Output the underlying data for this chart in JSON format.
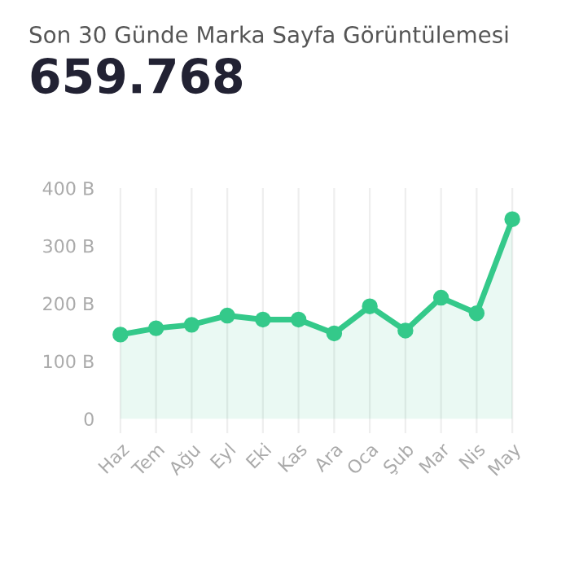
{
  "chart_data": {
    "type": "area",
    "title": "Son 30 Günde Marka Sayfa Görüntülemesi",
    "subtitle": "659.768",
    "categories": [
      "Haz",
      "Tem",
      "Ağu",
      "Eyl",
      "Eki",
      "Kas",
      "Ara",
      "Oca",
      "Şub",
      "Mar",
      "Nis",
      "May"
    ],
    "series": [
      {
        "color": "#34c98a",
        "values": [
          146,
          157,
          163,
          179,
          172,
          172,
          148,
          195,
          153,
          210,
          183,
          346
        ]
      }
    ],
    "ylim": [
      -25,
      400
    ],
    "yticks": [
      {
        "value": 0,
        "label": "0"
      },
      {
        "value": 100,
        "label": "100 B"
      },
      {
        "value": 200,
        "label": "200 B"
      },
      {
        "value": 300,
        "label": "300 B"
      },
      {
        "value": 400,
        "label": "400 B"
      }
    ],
    "grid": "x",
    "marker": "circle",
    "line_style": "solid",
    "legend": false
  }
}
